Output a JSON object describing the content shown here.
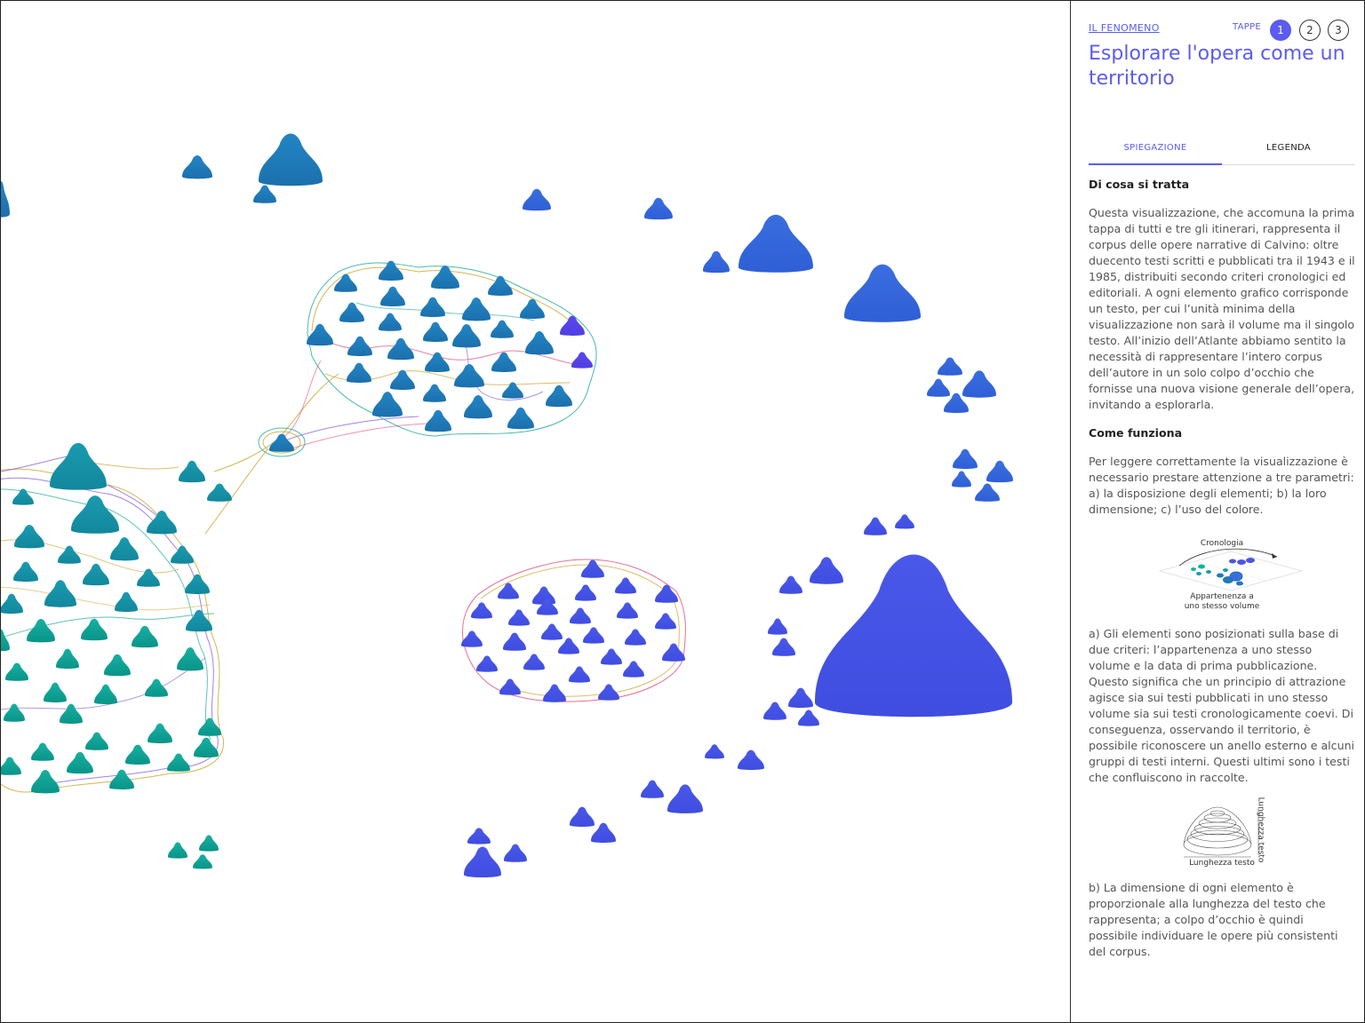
{
  "sidebar": {
    "breadcrumb": "IL FENOMENO",
    "tappe_label": "TAPPE",
    "steps": [
      "1",
      "2",
      "3"
    ],
    "active_step": "1",
    "title": "Esplorare l'opera come un territorio",
    "tabs": [
      {
        "label": "SPIEGAZIONE",
        "active": true
      },
      {
        "label": "LEGENDA",
        "active": false
      }
    ],
    "section1_title": "Di cosa si tratta",
    "section1_text": "Questa visualizzazione, che accomuna la prima tappa di tutti e tre gli itinerari, rappresenta il corpus delle opere narrative di Calvino: oltre duecento testi scritti e pubblicati tra il 1943 e il 1985, distribuiti secondo criteri cronologici ed editoriali. A ogni elemento grafico corrisponde un testo, per cui l’unità minima della visualizzazione non sarà il volume ma il singolo testo. All’inizio dell’Atlante abbiamo sentito la necessità di rappresentare l’intero corpus dell’autore in un solo colpo d’occhio che fornisse una nuova visione generale dell’opera, invitando a esplorarla.",
    "section2_title": "Come funziona",
    "section2_text": "Per leggere correttamente la visualizzazione è necessario prestare attenzione a tre parametri: a) la disposizione degli elementi; b) la loro dimensione; c) l’uso del colore.",
    "figure1": {
      "top_label": "Cronologia",
      "bottom_label_1": "Appartenenza a",
      "bottom_label_2": "uno stesso volume"
    },
    "para_a": "a) Gli elementi sono posizionati sulla base di due criteri: l’appartenenza a uno stesso volume e la data di prima pubblicazione. Questo significa che un principio di attrazione agisce sia sui testi pubblicati in uno stesso volume sia sui testi cronologicamente coevi. Di conseguenza, osservando il territorio, è possibile riconoscere un anello esterno e alcuni gruppi di testi interni. Questi ultimi sono i testi che confluiscono in raccolte.",
    "figure2": {
      "side_label": "Lunghezza testo",
      "bottom_label": "Lunghezza testo"
    },
    "para_b": "b) La dimensione di ogni elemento è proporzionale alla lunghezza del testo che rappresenta; a colpo d’occhio è quindi possibile individuare le opere più consistenti del corpus."
  },
  "colors": {
    "accent": "#5b5bf0",
    "teal": "#0fa89a",
    "steel_blue": "#1f7ab8",
    "indigo": "#4a55e6",
    "violet": "#5a45ea"
  }
}
